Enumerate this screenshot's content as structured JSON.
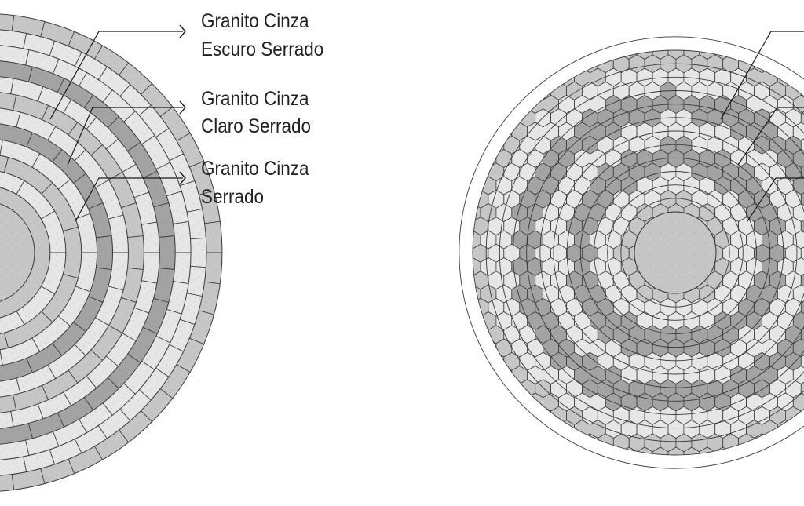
{
  "colors": {
    "dark": "#a3a3a3",
    "medium": "#c6c6c6",
    "light": "#e6e6e6",
    "line": "#3a3a3a",
    "background": "#ffffff"
  },
  "left_pattern": {
    "rings": [
      "medium",
      "medium",
      "light",
      "medium",
      "light",
      "dark",
      "light",
      "medium",
      "light",
      "dark",
      "light",
      "light",
      "medium"
    ],
    "segments": [
      0,
      0,
      12,
      12,
      18,
      24,
      24,
      30,
      36,
      36,
      42,
      48,
      48
    ]
  },
  "right_pattern": {
    "rings": [
      "medium",
      "light",
      "light",
      "dark",
      "dark",
      "light",
      "light",
      "dark",
      "dark",
      "light",
      "light",
      "medium",
      "medium"
    ]
  },
  "labels": [
    {
      "line1": "Granito Cinza",
      "line2": "Escuro Serrado"
    },
    {
      "line1": "Granito Cinza",
      "line2": "Claro Serrado"
    },
    {
      "line1": "Granito Cinza",
      "line2": "Serrado"
    }
  ]
}
